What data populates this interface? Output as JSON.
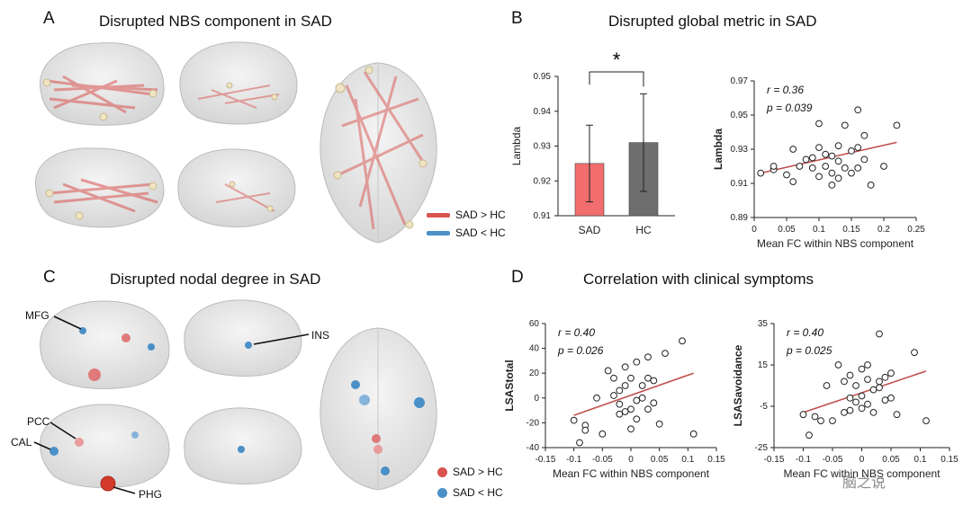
{
  "panels": {
    "A": {
      "letter": "A",
      "title": "Disrupted NBS component in SAD",
      "legend": [
        {
          "label": "SAD > HC",
          "color": "#d9534f"
        },
        {
          "label": "SAD < HC",
          "color": "#4a90c8"
        }
      ]
    },
    "B": {
      "letter": "B",
      "title": "Disrupted global metric in SAD"
    },
    "C": {
      "letter": "C",
      "title": "Disrupted nodal degree in SAD",
      "labels": [
        "MFG",
        "INS",
        "PCC",
        "CAL",
        "PHG"
      ],
      "legend": [
        {
          "label": "SAD > HC",
          "color": "#d9534f"
        },
        {
          "label": "SAD < HC",
          "color": "#4a90c8"
        }
      ]
    },
    "D": {
      "letter": "D",
      "title": "Correlation with clinical symptoms"
    }
  },
  "watermark": "脑之说",
  "chart_data": [
    {
      "id": "bar",
      "type": "bar",
      "categories": [
        "SAD",
        "HC"
      ],
      "values": [
        0.925,
        0.931
      ],
      "errors": [
        0.011,
        0.014
      ],
      "colors": [
        "#f26d6d",
        "#6e6e6e"
      ],
      "ylabel": "Lambda",
      "ylim": [
        0.91,
        0.95
      ],
      "yticks": [
        "0.91",
        "0.92",
        "0.93",
        "0.94",
        "0.95"
      ],
      "significance": "*"
    },
    {
      "id": "scatterB",
      "type": "scatter",
      "xlabel": "Mean FC within NBS component",
      "ylabel": "Lambda",
      "xlim": [
        0,
        0.25
      ],
      "ylim": [
        0.89,
        0.97
      ],
      "xticks": [
        "0",
        "0.05",
        "0.1",
        "0.15",
        "0.2",
        "0.25"
      ],
      "yticks": [
        "0.89",
        "0.91",
        "0.93",
        "0.95",
        "0.97"
      ],
      "r": "r = 0.36",
      "p": "p = 0.039",
      "fit": [
        [
          0.01,
          0.916
        ],
        [
          0.22,
          0.934
        ]
      ],
      "points": [
        [
          0.01,
          0.916
        ],
        [
          0.03,
          0.918
        ],
        [
          0.03,
          0.92
        ],
        [
          0.05,
          0.915
        ],
        [
          0.06,
          0.911
        ],
        [
          0.06,
          0.93
        ],
        [
          0.08,
          0.924
        ],
        [
          0.09,
          0.919
        ],
        [
          0.1,
          0.931
        ],
        [
          0.1,
          0.945
        ],
        [
          0.1,
          0.914
        ],
        [
          0.11,
          0.927
        ],
        [
          0.11,
          0.92
        ],
        [
          0.12,
          0.926
        ],
        [
          0.12,
          0.909
        ],
        [
          0.12,
          0.916
        ],
        [
          0.13,
          0.932
        ],
        [
          0.13,
          0.923
        ],
        [
          0.13,
          0.913
        ],
        [
          0.14,
          0.944
        ],
        [
          0.14,
          0.919
        ],
        [
          0.15,
          0.929
        ],
        [
          0.15,
          0.916
        ],
        [
          0.16,
          0.953
        ],
        [
          0.16,
          0.931
        ],
        [
          0.16,
          0.919
        ],
        [
          0.17,
          0.938
        ],
        [
          0.17,
          0.924
        ],
        [
          0.18,
          0.909
        ],
        [
          0.2,
          0.92
        ],
        [
          0.22,
          0.944
        ],
        [
          0.07,
          0.92
        ],
        [
          0.09,
          0.925
        ]
      ]
    },
    {
      "id": "scatterD1",
      "type": "scatter",
      "xlabel": "Mean FC within NBS component",
      "ylabel": "LSAStotal",
      "xlim": [
        -0.15,
        0.15
      ],
      "ylim": [
        -40,
        60
      ],
      "xticks": [
        "-0.15",
        "-0.1",
        "-0.05",
        "0",
        "0.05",
        "0.1",
        "0.15"
      ],
      "yticks": [
        "-40",
        "-20",
        "0",
        "20",
        "40",
        "60"
      ],
      "r": "r = 0.40",
      "p": "p = 0.026",
      "fit": [
        [
          -0.1,
          -14
        ],
        [
          0.11,
          20
        ]
      ],
      "points": [
        [
          -0.1,
          -18
        ],
        [
          -0.09,
          -36
        ],
        [
          -0.08,
          -22
        ],
        [
          -0.08,
          -26
        ],
        [
          -0.06,
          0
        ],
        [
          -0.05,
          -29
        ],
        [
          -0.04,
          22
        ],
        [
          -0.03,
          2
        ],
        [
          -0.03,
          16
        ],
        [
          -0.02,
          -5
        ],
        [
          -0.02,
          6
        ],
        [
          -0.02,
          -13
        ],
        [
          -0.01,
          25
        ],
        [
          -0.01,
          -11
        ],
        [
          0,
          -9
        ],
        [
          0,
          -25
        ],
        [
          0,
          16
        ],
        [
          0.01,
          -2
        ],
        [
          0.01,
          29
        ],
        [
          0.01,
          -17
        ],
        [
          0.02,
          10
        ],
        [
          0.02,
          0
        ],
        [
          0.03,
          -9
        ],
        [
          0.03,
          16
        ],
        [
          0.04,
          14
        ],
        [
          0.04,
          -4
        ],
        [
          0.05,
          -21
        ],
        [
          0.06,
          36
        ],
        [
          0.09,
          46
        ],
        [
          0.11,
          -29
        ],
        [
          -0.01,
          10
        ],
        [
          0.03,
          33
        ]
      ]
    },
    {
      "id": "scatterD2",
      "type": "scatter",
      "xlabel": "Mean FC within NBS component",
      "ylabel": "LSASavoidance",
      "xlim": [
        -0.15,
        0.15
      ],
      "ylim": [
        -25,
        35
      ],
      "xticks": [
        "-0.15",
        "-0.1",
        "-0.05",
        "0",
        "0.05",
        "0.1",
        "0.15"
      ],
      "yticks": [
        "-25",
        "-5",
        "15",
        "35"
      ],
      "r": "r = 0.40",
      "p": "p = 0.025",
      "fit": [
        [
          -0.1,
          -8
        ],
        [
          0.11,
          12
        ]
      ],
      "points": [
        [
          -0.1,
          -9
        ],
        [
          -0.09,
          -19
        ],
        [
          -0.08,
          -10
        ],
        [
          -0.07,
          -12
        ],
        [
          -0.06,
          5
        ],
        [
          -0.05,
          -12
        ],
        [
          -0.04,
          15
        ],
        [
          -0.03,
          7
        ],
        [
          -0.02,
          -1
        ],
        [
          -0.02,
          -7
        ],
        [
          -0.02,
          10
        ],
        [
          -0.01,
          5
        ],
        [
          -0.01,
          -3
        ],
        [
          0,
          0
        ],
        [
          0,
          13
        ],
        [
          0,
          -6
        ],
        [
          0.01,
          8
        ],
        [
          0.01,
          -4
        ],
        [
          0.01,
          15
        ],
        [
          0.02,
          3
        ],
        [
          0.02,
          -8
        ],
        [
          0.03,
          4
        ],
        [
          0.03,
          7
        ],
        [
          0.04,
          -2
        ],
        [
          0.04,
          9
        ],
        [
          0.05,
          -1
        ],
        [
          0.03,
          30
        ],
        [
          0.06,
          -9
        ],
        [
          0.09,
          21
        ],
        [
          0.11,
          -12
        ],
        [
          0.05,
          11
        ],
        [
          -0.03,
          -8
        ]
      ]
    }
  ]
}
